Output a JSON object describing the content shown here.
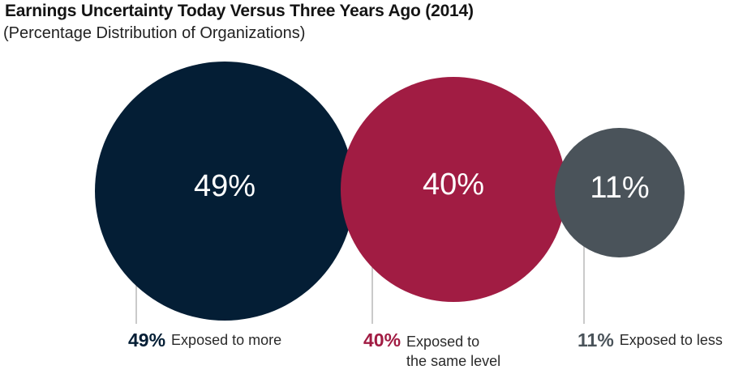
{
  "chart_data": {
    "type": "bubble",
    "title": "Earnings Uncertainty Today Versus Three Years Ago (2014)",
    "subtitle": "(Percentage Distribution of Organizations)",
    "unit": "%",
    "series": [
      {
        "label": "49%",
        "value": 49,
        "caption": "Exposed to more",
        "color": "#041e35"
      },
      {
        "label": "40%",
        "value": 40,
        "caption": "Exposed to\nthe same level",
        "color": "#a11c43"
      },
      {
        "label": "11%",
        "value": 11,
        "caption": "Exposed to less",
        "color": "#4a535a"
      }
    ]
  }
}
